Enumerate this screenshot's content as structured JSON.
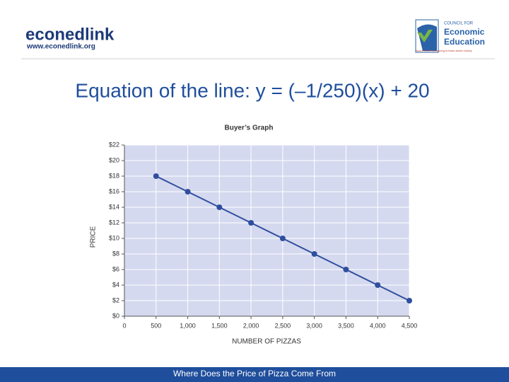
{
  "header": {
    "logo_name": "econedlink",
    "logo_url": "www.econedlink.org",
    "council_top": "COUNCIL FOR",
    "council_line1": "Economic",
    "council_line2": "Education",
    "council_tagline": "You're never too young to learn about money"
  },
  "title": "Equation of the line: y = (–1/250)(x) + 20",
  "chart_data": {
    "type": "line",
    "title": "Buyer’s Graph",
    "x_label": "NUMBER OF PIZZAS",
    "y_label": "PRICE",
    "x": [
      500,
      1000,
      1500,
      2000,
      2500,
      3000,
      3500,
      4000,
      4500
    ],
    "values": [
      18,
      16,
      14,
      12,
      10,
      8,
      6,
      4,
      2
    ],
    "color": "#2f4f9e",
    "grid": true,
    "xlim": [
      0,
      4500
    ],
    "xticks": [
      0,
      500,
      {
        "value": 1000,
        "label": "1,000"
      },
      {
        "value": 1500,
        "label": "1,500"
      },
      {
        "value": 2000,
        "label": "2,000"
      },
      {
        "value": 2500,
        "label": "2,500"
      },
      {
        "value": 3000,
        "label": "3,000"
      },
      {
        "value": 3500,
        "label": "3,500"
      },
      {
        "value": 4000,
        "label": "4,000"
      },
      {
        "value": 4500,
        "label": "4,500"
      }
    ],
    "ylim": [
      0,
      22
    ],
    "yticks": [
      {
        "value": 0,
        "label": "$0"
      },
      {
        "value": 2,
        "label": "$2"
      },
      {
        "value": 4,
        "label": "$4"
      },
      {
        "value": 6,
        "label": "$6"
      },
      {
        "value": 8,
        "label": "$8"
      },
      {
        "value": 10,
        "label": "$10"
      },
      {
        "value": 12,
        "label": "$12"
      },
      {
        "value": 14,
        "label": "$14"
      },
      {
        "value": 16,
        "label": "$16"
      },
      {
        "value": 18,
        "label": "$18"
      },
      {
        "value": 20,
        "label": "$20"
      },
      {
        "value": 22,
        "label": "$22"
      }
    ]
  },
  "footer": "Where Does the Price of Pizza Come From"
}
